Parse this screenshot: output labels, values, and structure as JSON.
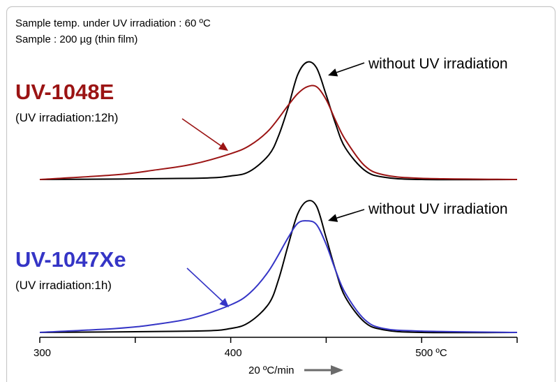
{
  "figure": {
    "notes": [
      "Sample temp. under UV irradiation  : 60 ºC",
      "Sample : 200 µg (thin film)"
    ],
    "heating_rate_label": "20 ºC/min"
  },
  "colors": {
    "uv1048e": "#9b1414",
    "uv1047xe": "#3535c6",
    "reference": "#000000",
    "axis": "#000000",
    "arrow_grey": "#6b6b6b",
    "frame": "#c8c8c8"
  },
  "chart_data": {
    "type": "line",
    "xlim": [
      300,
      550
    ],
    "x_ticks": [
      300,
      350,
      400,
      450,
      500,
      550
    ],
    "x_tick_labels": [
      {
        "value": 300,
        "label": "300"
      },
      {
        "value": 400,
        "label": "400"
      },
      {
        "value": 500,
        "label": "500 ºC"
      }
    ],
    "ylim": [
      0,
      1
    ],
    "grid": false,
    "panels": [
      {
        "sample_label": "UV-1048E",
        "condition_label": "(UV irradiation:12h)",
        "reference_label": "without UV irradiation",
        "series": [
          {
            "name": "without UV irradiation",
            "color_key": "reference",
            "x": [
              300,
              380,
              400,
              410,
              420,
              425,
              430,
              435,
              440,
              445,
              450,
              455,
              460,
              470,
              480,
              500,
              550
            ],
            "y": [
              0.0,
              0.01,
              0.03,
              0.07,
              0.21,
              0.37,
              0.61,
              0.89,
              1.0,
              0.95,
              0.72,
              0.47,
              0.27,
              0.08,
              0.02,
              0.0,
              0.0
            ]
          },
          {
            "name": "UV-1048E",
            "color_key": "uv1048e",
            "x": [
              300,
              340,
              360,
              380,
              400,
              410,
              420,
              430,
              435,
              440,
              445,
              450,
              455,
              460,
              470,
              480,
              500,
              550
            ],
            "y": [
              0.0,
              0.04,
              0.08,
              0.13,
              0.22,
              0.29,
              0.42,
              0.63,
              0.73,
              0.79,
              0.79,
              0.68,
              0.5,
              0.34,
              0.12,
              0.04,
              0.01,
              0.0
            ]
          }
        ]
      },
      {
        "sample_label": "UV-1047Xe",
        "condition_label": "(UV irradiation:1h)",
        "reference_label": "without UV irradiation",
        "series": [
          {
            "name": "without UV irradiation",
            "color_key": "reference",
            "x": [
              300,
              380,
              400,
              410,
              420,
              425,
              430,
              435,
              440,
              445,
              450,
              455,
              460,
              470,
              480,
              500,
              550
            ],
            "y": [
              0.0,
              0.01,
              0.03,
              0.08,
              0.22,
              0.4,
              0.66,
              0.9,
              1.0,
              0.96,
              0.72,
              0.47,
              0.27,
              0.08,
              0.02,
              0.0,
              0.0
            ]
          },
          {
            "name": "UV-1047Xe",
            "color_key": "uv1047xe",
            "x": [
              300,
              340,
              360,
              380,
              400,
              410,
              420,
              430,
              435,
              440,
              445,
              450,
              455,
              460,
              470,
              480,
              500,
              550
            ],
            "y": [
              0.0,
              0.03,
              0.06,
              0.11,
              0.21,
              0.3,
              0.47,
              0.72,
              0.83,
              0.85,
              0.82,
              0.67,
              0.47,
              0.3,
              0.1,
              0.03,
              0.01,
              0.0
            ]
          }
        ]
      }
    ]
  }
}
